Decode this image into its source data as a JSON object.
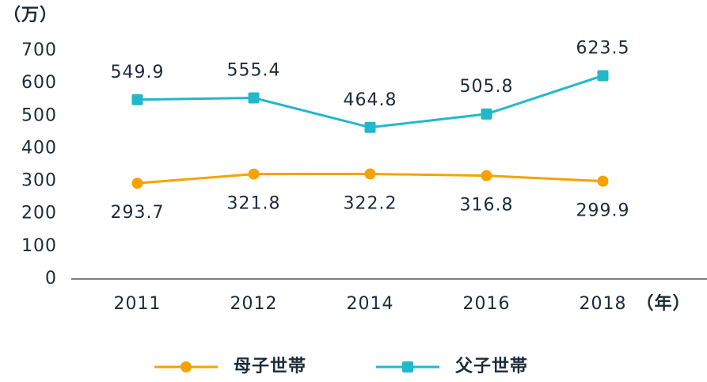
{
  "chart_data": {
    "type": "line",
    "y_unit": "（万）",
    "x_unit": "（年）",
    "categories": [
      "2011",
      "2012",
      "2014",
      "2016",
      "2018"
    ],
    "series": [
      {
        "name": "母子世帯",
        "color": "#f5a300",
        "marker": "circle",
        "values": [
          293.7,
          321.8,
          322.2,
          316.8,
          299.9
        ]
      },
      {
        "name": "父子世帯",
        "color": "#22b8cc",
        "marker": "square",
        "values": [
          549.9,
          555.4,
          464.8,
          505.8,
          623.5
        ]
      }
    ],
    "ylim": [
      0,
      700
    ],
    "yticks": [
      0,
      100,
      200,
      300,
      400,
      500,
      600,
      700
    ],
    "legend": "bottom"
  }
}
